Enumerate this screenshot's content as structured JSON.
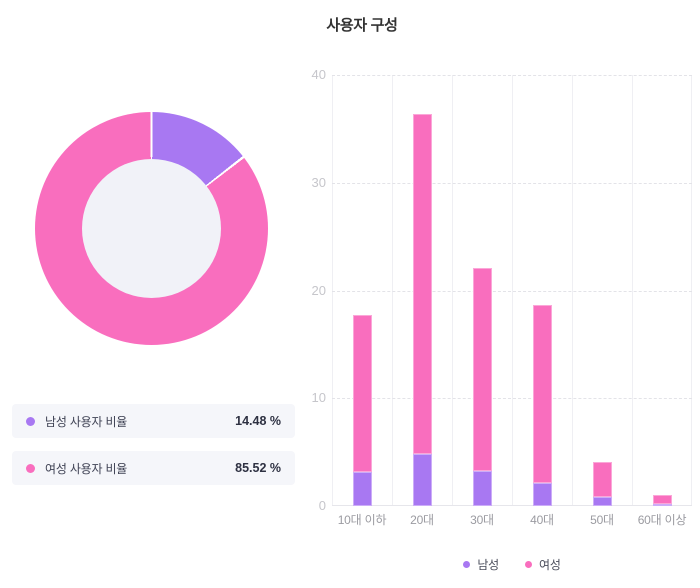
{
  "title": "사용자 구성",
  "colors": {
    "male": "#A878F2",
    "male_border": "#CCADF8",
    "female": "#F96EBE",
    "female_border": "#FBA7D8",
    "donut_hole": "#F1F2F8",
    "legend_row_bg": "#F5F6FA"
  },
  "donut_legend": {
    "rows": [
      {
        "label": "남성 사용자 비율",
        "value": "14.48 %"
      },
      {
        "label": "여성 사용자 비율",
        "value": "85.52 %"
      }
    ]
  },
  "chart_data": [
    {
      "type": "pie",
      "subtype": "donut",
      "title": "사용자 구성",
      "labels": [
        "남성 사용자 비율",
        "여성 사용자 비율"
      ],
      "values": [
        14.48,
        85.52
      ],
      "display_values": [
        "14.48 %",
        "85.52 %"
      ],
      "colors": [
        "#A878F2",
        "#F96EBE"
      ],
      "start_angle_deg": 0,
      "direction": "clockwise",
      "legend_position": "below-as-rows"
    },
    {
      "type": "bar",
      "stacked": true,
      "title": "사용자 구성",
      "categories": [
        "10대 이하",
        "20대",
        "30대",
        "40대",
        "50대",
        "60대 이상"
      ],
      "series": [
        {
          "name": "남성",
          "color": "#A878F2",
          "values": [
            3.2,
            4.85,
            3.25,
            2.1,
            0.85,
            0.23
          ]
        },
        {
          "name": "여성",
          "color": "#F96EBE",
          "values": [
            14.5,
            31.55,
            18.85,
            16.6,
            3.25,
            0.77
          ]
        }
      ],
      "totals": [
        17.7,
        36.4,
        22.1,
        18.7,
        4.1,
        1.0
      ],
      "xlabel": "",
      "ylabel": "",
      "ylim": [
        0,
        40
      ],
      "y_ticks": [
        0,
        10,
        20,
        30,
        40
      ],
      "grid": true,
      "gridline_style": "dashed-horizontal, solid-vertical",
      "legend": [
        "남성",
        "여성"
      ],
      "legend_position": "bottom-center"
    }
  ]
}
